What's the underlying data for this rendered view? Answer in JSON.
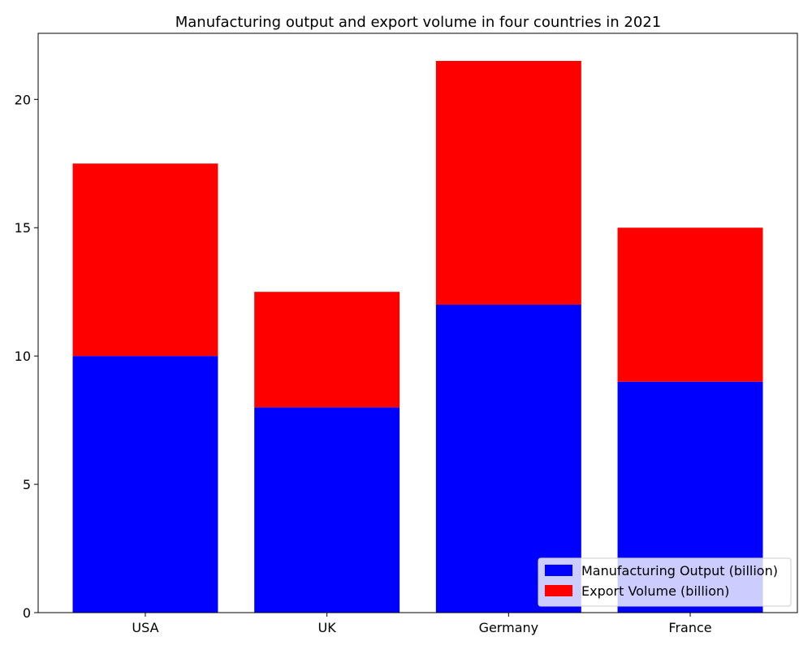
{
  "chart_data": {
    "type": "bar",
    "stacked": true,
    "title": "Manufacturing output and export volume in four countries in 2021",
    "xlabel": "",
    "ylabel": "",
    "categories": [
      "USA",
      "UK",
      "Germany",
      "France"
    ],
    "series": [
      {
        "name": "Manufacturing Output (billion)",
        "values": [
          10,
          8,
          12,
          9
        ],
        "color": "#0000ff"
      },
      {
        "name": "Export Volume (billion)",
        "values": [
          7.5,
          4.5,
          9.5,
          6
        ],
        "color": "#ff0000"
      }
    ],
    "ylim": [
      0,
      22.575
    ],
    "yticks": [
      0,
      5,
      10,
      15,
      20
    ],
    "grid": false,
    "legend_position": "bottom-right"
  }
}
